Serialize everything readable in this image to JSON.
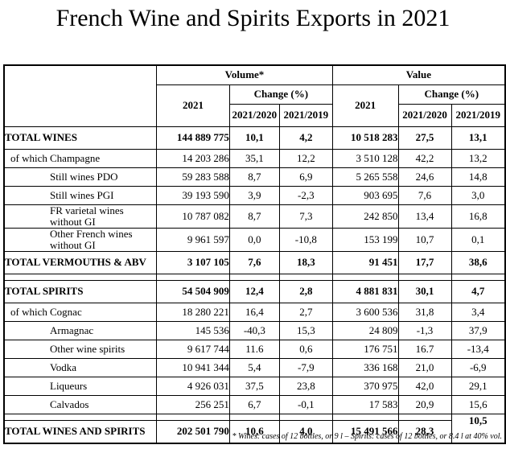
{
  "title": "French Wine and Spirits Exports in 2021",
  "footnote": "* Wines: cases of 12 bottles, or 9 l – Spirits: cases of 12 bottles, or 8.4 l at 40% vol.",
  "header": {
    "volume": "Volume*",
    "value": "Value",
    "year": "2021",
    "change": "Change (%)",
    "c2020": "2021/2020",
    "c2019": "2021/2019"
  },
  "rows": [
    {
      "kind": "total",
      "label": "TOTAL WINES",
      "cells": [
        "144 889 775",
        "10,1",
        "4,2",
        "10 518 283",
        "27,5",
        "13,1"
      ]
    },
    {
      "kind": "sub",
      "prefix": "of which",
      "label": "Champagne",
      "cells": [
        "14 203 286",
        "35,1",
        "12,2",
        "3 510 128",
        "42,2",
        "13,2"
      ]
    },
    {
      "kind": "sub",
      "prefix": "",
      "label": "Still wines PDO",
      "cells": [
        "59 283 588",
        "8,7",
        "6,9",
        "5 265 558",
        "24,6",
        "14,8"
      ]
    },
    {
      "kind": "sub",
      "prefix": "",
      "label": "Still wines PGI",
      "cells": [
        "39 193 590",
        "3,9",
        "-2,3",
        "903 695",
        "7,6",
        "3,0"
      ]
    },
    {
      "kind": "sub",
      "tall": true,
      "prefix": "",
      "label": "FR varietal wines",
      "label2": "without GI",
      "cells": [
        "10 787 082",
        "8,7",
        "7,3",
        "242 850",
        "13,4",
        "16,8"
      ]
    },
    {
      "kind": "sub",
      "tall": true,
      "prefix": "",
      "label": "Other French wines",
      "label2": "without GI",
      "cells": [
        "9 961 597",
        "0,0",
        "-10,8",
        "153 199",
        "10,7",
        "0,1"
      ]
    },
    {
      "kind": "total",
      "label": "TOTAL VERMOUTHS & ABV",
      "cells": [
        "3 107 105",
        "7,6",
        "18,3",
        "91 451",
        "17,7",
        "38,6"
      ]
    },
    {
      "kind": "spacer"
    },
    {
      "kind": "total",
      "label": "TOTAL SPIRITS",
      "cells": [
        "54 504 909",
        "12,4",
        "2,8",
        "4 881 831",
        "30,1",
        "4,7"
      ]
    },
    {
      "kind": "sub",
      "prefix": "of which",
      "label": "Cognac",
      "cells": [
        "18 280 221",
        "16,4",
        "2,7",
        "3 600 536",
        "31,8",
        "3,4"
      ]
    },
    {
      "kind": "sub",
      "prefix": "",
      "label": "Armagnac",
      "cells": [
        "145 536",
        "-40,3",
        "15,3",
        "24 809",
        "-1,3",
        "37,9"
      ]
    },
    {
      "kind": "sub",
      "prefix": "",
      "label": "Other wine spirits",
      "cells": [
        "9 617 744",
        "11.6",
        "0,6",
        "176 751",
        "16.7",
        "-13,4"
      ]
    },
    {
      "kind": "sub",
      "prefix": "",
      "label": "Vodka",
      "cells": [
        "10 941 344",
        "5,4",
        "-7,9",
        "336 168",
        "21,0",
        "-6,9"
      ]
    },
    {
      "kind": "sub",
      "prefix": "",
      "label": "Liqueurs",
      "cells": [
        "4 926 031",
        "37,5",
        "23,8",
        "370 975",
        "42,0",
        "29,1"
      ]
    },
    {
      "kind": "sub",
      "prefix": "",
      "label": "Calvados",
      "cells": [
        "256 251",
        "6,7",
        "-0,1",
        "17 583",
        "20,9",
        "15,6"
      ]
    },
    {
      "kind": "spacerMerged"
    },
    {
      "kind": "grand",
      "label": "TOTAL WINES AND SPIRITS",
      "cells": [
        "202 501 790",
        "10,6",
        "4,0",
        "15 491 566",
        "28,3",
        "10,5"
      ]
    }
  ]
}
